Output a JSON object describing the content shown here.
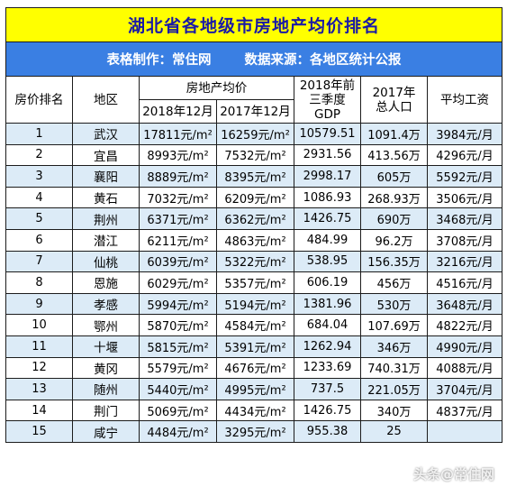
{
  "title": "湖北省各地级市房地产均价排名",
  "subtitle": {
    "maker": "表格制作：常住网",
    "source": "数据来源：各地区统计公报"
  },
  "headers": {
    "rank": "房价排名",
    "region": "地区",
    "price_group": "房地产均价",
    "price_2018": "2018年12月",
    "price_2017": "2017年12月",
    "gdp": "2018年前三季度GDP",
    "population": "2017年总人口",
    "wage": "平均工资"
  },
  "rows": [
    {
      "rank": "1",
      "region": "武汉",
      "p2018": "17811元/m²",
      "p2017": "16259元/m²",
      "gdp": "10579.51",
      "pop": "1091.4万",
      "wage": "3984元/月"
    },
    {
      "rank": "2",
      "region": "宜昌",
      "p2018": "8993元/m²",
      "p2017": "7532元/m²",
      "gdp": "2931.56",
      "pop": "413.56万",
      "wage": "4296元/月"
    },
    {
      "rank": "3",
      "region": "襄阳",
      "p2018": "8889元/m²",
      "p2017": "8395元/m²",
      "gdp": "2998.17",
      "pop": "605万",
      "wage": "5592元/月"
    },
    {
      "rank": "4",
      "region": "黄石",
      "p2018": "7032元/m²",
      "p2017": "6209元/m²",
      "gdp": "1086.93",
      "pop": "268.93万",
      "wage": "3506元/月"
    },
    {
      "rank": "5",
      "region": "荆州",
      "p2018": "6371元/m²",
      "p2017": "6362元/m²",
      "gdp": "1426.75",
      "pop": "690万",
      "wage": "3468元/月"
    },
    {
      "rank": "6",
      "region": "潜江",
      "p2018": "6211元/m²",
      "p2017": "4863元/m²",
      "gdp": "484.99",
      "pop": "96.2万",
      "wage": "3708元/月"
    },
    {
      "rank": "7",
      "region": "仙桃",
      "p2018": "6039元/m²",
      "p2017": "5322元/m²",
      "gdp": "538.95",
      "pop": "156.35万",
      "wage": "3216元/月"
    },
    {
      "rank": "8",
      "region": "恩施",
      "p2018": "6029元/m²",
      "p2017": "5357元/m²",
      "gdp": "606.19",
      "pop": "456万",
      "wage": "4516元/月"
    },
    {
      "rank": "9",
      "region": "孝感",
      "p2018": "5994元/m²",
      "p2017": "5194元/m²",
      "gdp": "1381.96",
      "pop": "530万",
      "wage": "3648元/月"
    },
    {
      "rank": "10",
      "region": "鄂州",
      "p2018": "5870元/m²",
      "p2017": "4584元/m²",
      "gdp": "684.04",
      "pop": "107.69万",
      "wage": "4822元/月"
    },
    {
      "rank": "11",
      "region": "十堰",
      "p2018": "5815元/m²",
      "p2017": "5391元/m²",
      "gdp": "1262.94",
      "pop": "346万",
      "wage": "4990元/月"
    },
    {
      "rank": "12",
      "region": "黄冈",
      "p2018": "5579元/m²",
      "p2017": "4676元/m²",
      "gdp": "1233.69",
      "pop": "740.31万",
      "wage": "4088元/月"
    },
    {
      "rank": "13",
      "region": "随州",
      "p2018": "5440元/m²",
      "p2017": "4995元/m²",
      "gdp": "737.5",
      "pop": "221.05万",
      "wage": "3704元/月"
    },
    {
      "rank": "14",
      "region": "荆门",
      "p2018": "5069元/m²",
      "p2017": "4434元/m²",
      "gdp": "1426.75",
      "pop": "340万",
      "wage": "4837元/月"
    },
    {
      "rank": "15",
      "region": "咸宁",
      "p2018": "4484元/m²",
      "p2017": "3295元/m²",
      "gdp": "955.38",
      "pop": "25",
      "wage": ""
    }
  ],
  "watermark": "头条@常住网"
}
